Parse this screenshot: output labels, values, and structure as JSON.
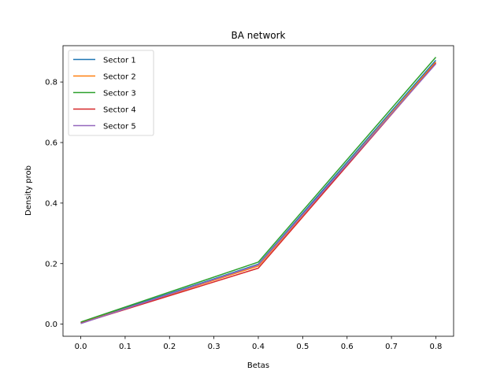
{
  "chart_data": {
    "type": "line",
    "title": "BA network",
    "xlabel": "Betas",
    "ylabel": "Density prob",
    "x": [
      0.0,
      0.4,
      0.8
    ],
    "xlim": [
      -0.04,
      0.84
    ],
    "ylim": [
      -0.04,
      0.92
    ],
    "xticks": [
      0.0,
      0.1,
      0.2,
      0.3,
      0.4,
      0.5,
      0.6,
      0.7,
      0.8
    ],
    "xtick_labels": [
      "0.0",
      "0.1",
      "0.2",
      "0.3",
      "0.4",
      "0.5",
      "0.6",
      "0.7",
      "0.8"
    ],
    "yticks": [
      0.0,
      0.2,
      0.4,
      0.6,
      0.8
    ],
    "ytick_labels": [
      "0.0",
      "0.2",
      "0.4",
      "0.6",
      "0.8"
    ],
    "grid": false,
    "legend_position": "top-left",
    "series": [
      {
        "name": "Sector 1",
        "color": "#1f77b4",
        "values": [
          0.005,
          0.198,
          0.872
        ]
      },
      {
        "name": "Sector 2",
        "color": "#ff7f0e",
        "values": [
          0.004,
          0.192,
          0.866
        ]
      },
      {
        "name": "Sector 3",
        "color": "#2ca02c",
        "values": [
          0.007,
          0.205,
          0.882
        ]
      },
      {
        "name": "Sector 4",
        "color": "#d62728",
        "values": [
          0.003,
          0.185,
          0.862
        ]
      },
      {
        "name": "Sector 5",
        "color": "#9467bd",
        "values": [
          0.002,
          0.196,
          0.86
        ]
      }
    ]
  }
}
